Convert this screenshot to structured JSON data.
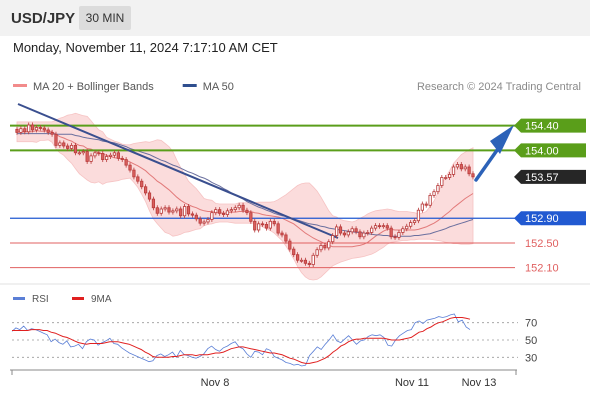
{
  "header": {
    "symbol": "USD/JPY",
    "timeframe": "30 MIN"
  },
  "timestamp": "Monday, November 11, 2024 7:17:10 AM CET",
  "legend": {
    "items": [
      {
        "label": "MA 20 + Bollinger Bands",
        "color": "#f28b8b"
      },
      {
        "label": "MA 50",
        "color": "#2f4f8f"
      }
    ],
    "credit": "Research © 2024 Trading Central"
  },
  "rsi_legend": [
    {
      "label": "RSI",
      "color": "#5b7fd6"
    },
    {
      "label": "9MA",
      "color": "#e02020"
    }
  ],
  "colors": {
    "resistance": "#5a9e1a",
    "pivot": "#2159d1",
    "support": "#e06060",
    "arrow": "#2c62b8",
    "bollinger_fill": "#fbdcdc",
    "candle_fill": "#d8605e",
    "candle_stroke": "#b83a3a"
  },
  "chart_data": [
    {
      "type": "candlestick",
      "title": "USD/JPY",
      "timeframe": "30 MIN",
      "ylim": [
        151.9,
        154.75
      ],
      "x_ticks": [
        "Nov 8",
        "Nov 11",
        "Nov 13"
      ],
      "levels": [
        {
          "value": 154.4,
          "label": "154.40",
          "kind": "resistance"
        },
        {
          "value": 154.0,
          "label": "154.00",
          "kind": "resistance"
        },
        {
          "value": 153.57,
          "label": "153.57",
          "kind": "last"
        },
        {
          "value": 152.9,
          "label": "152.90",
          "kind": "pivot"
        },
        {
          "value": 152.5,
          "label": "152.50",
          "kind": "support"
        },
        {
          "value": 152.1,
          "label": "152.10",
          "kind": "support"
        }
      ],
      "close": [
        154.29,
        154.35,
        154.3,
        154.41,
        154.33,
        154.37,
        154.36,
        154.33,
        154.29,
        154.26,
        154.08,
        154.12,
        154.07,
        154.03,
        154.08,
        153.96,
        153.96,
        153.98,
        153.82,
        153.91,
        153.96,
        153.95,
        153.85,
        153.9,
        153.92,
        153.96,
        153.87,
        153.85,
        153.76,
        153.68,
        153.57,
        153.5,
        153.41,
        153.31,
        153.21,
        153.07,
        152.98,
        153.05,
        153.07,
        153.0,
        153.02,
        153.05,
        152.94,
        153.09,
        152.97,
        152.95,
        152.89,
        152.82,
        152.84,
        152.88,
        152.99,
        153.04,
        152.98,
        152.96,
        153.02,
        153.04,
        153.07,
        153.11,
        153.03,
        152.99,
        152.85,
        152.71,
        152.81,
        152.8,
        152.74,
        152.85,
        152.81,
        152.66,
        152.63,
        152.53,
        152.4,
        152.31,
        152.22,
        152.22,
        152.17,
        152.15,
        152.3,
        152.39,
        152.46,
        152.42,
        152.52,
        152.62,
        152.76,
        152.66,
        152.63,
        152.68,
        152.73,
        152.68,
        152.6,
        152.66,
        152.67,
        152.74,
        152.78,
        152.77,
        152.78,
        152.74,
        152.6,
        152.59,
        152.67,
        152.73,
        152.77,
        152.83,
        152.86,
        153.03,
        153.13,
        153.11,
        153.27,
        153.33,
        153.43,
        153.56,
        153.56,
        153.61,
        153.73,
        153.77,
        153.7,
        153.73,
        153.62,
        153.57
      ],
      "ma20": [
        154.3,
        154.3,
        154.3,
        154.3,
        154.3,
        154.32,
        154.31,
        154.31,
        154.32,
        154.3,
        154.26,
        154.22,
        154.2,
        154.17,
        154.15,
        154.11,
        154.08,
        154.07,
        154.03,
        154.02,
        153.99,
        153.96,
        153.94,
        153.92,
        153.9,
        153.88,
        153.87,
        153.86,
        153.84,
        153.81,
        153.78,
        153.75,
        153.71,
        153.67,
        153.61,
        153.56,
        153.5,
        153.46,
        153.41,
        153.36,
        153.3,
        153.24,
        153.19,
        153.15,
        153.12,
        153.09,
        153.07,
        153.04,
        153.02,
        153.01,
        153.01,
        152.99,
        152.99,
        152.98,
        152.99,
        153.0,
        153.0,
        153.01,
        153.01,
        153.01,
        153.01,
        152.99,
        152.98,
        152.96,
        152.95,
        152.94,
        152.93,
        152.92,
        152.9,
        152.87,
        152.84,
        152.81,
        152.76,
        152.71,
        152.66,
        152.62,
        152.58,
        152.55,
        152.52,
        152.49,
        152.46,
        152.44,
        152.44,
        152.44,
        152.44,
        152.44,
        152.44,
        152.45,
        152.46,
        152.48,
        152.51,
        152.56,
        152.61,
        152.65,
        152.69,
        152.72,
        152.72,
        152.71,
        152.71,
        152.71,
        152.71,
        152.71,
        152.71,
        152.72,
        152.74,
        152.76,
        152.79,
        152.82,
        152.86,
        152.91,
        152.96,
        153.01,
        153.07,
        153.12,
        153.17,
        153.22,
        153.26,
        153.3
      ],
      "bollinger_upper": [
        154.46,
        154.46,
        154.46,
        154.46,
        154.46,
        154.46,
        154.46,
        154.46,
        154.46,
        154.46,
        154.49,
        154.52,
        154.54,
        154.57,
        154.58,
        154.6,
        154.58,
        154.56,
        154.55,
        154.48,
        154.4,
        154.33,
        154.3,
        154.21,
        154.18,
        154.15,
        154.13,
        154.1,
        154.09,
        154.09,
        154.11,
        154.12,
        154.13,
        154.14,
        154.13,
        154.15,
        154.17,
        154.16,
        154.11,
        154.06,
        153.98,
        153.84,
        153.72,
        153.61,
        153.5,
        153.44,
        153.38,
        153.3,
        153.22,
        153.2,
        153.19,
        153.14,
        153.13,
        153.13,
        153.13,
        153.13,
        153.13,
        153.15,
        153.15,
        153.15,
        153.15,
        153.15,
        153.16,
        153.16,
        153.16,
        153.16,
        153.17,
        153.2,
        153.24,
        153.28,
        153.33,
        153.38,
        153.43,
        153.46,
        153.47,
        153.47,
        153.41,
        153.34,
        153.24,
        153.13,
        153.02,
        152.94,
        152.92,
        152.88,
        152.86,
        152.85,
        152.84,
        152.86,
        152.9,
        152.93,
        152.97,
        153.0,
        153.02,
        153.03,
        153.04,
        153.05,
        153.04,
        153.02,
        153.01,
        153.01,
        153.01,
        153.0,
        152.99,
        152.97,
        152.98,
        153.01,
        153.09,
        153.18,
        153.31,
        153.45,
        153.57,
        153.67,
        153.79,
        153.86,
        153.93,
        153.97,
        154.01,
        154.04
      ],
      "bollinger_lower": [
        154.14,
        154.14,
        154.14,
        154.14,
        154.14,
        154.13,
        154.16,
        154.16,
        154.17,
        154.13,
        154.02,
        153.96,
        153.92,
        153.85,
        153.79,
        153.7,
        153.62,
        153.57,
        153.52,
        153.48,
        153.47,
        153.49,
        153.45,
        153.48,
        153.49,
        153.5,
        153.51,
        153.53,
        153.54,
        153.55,
        153.48,
        153.4,
        153.29,
        153.17,
        153.02,
        152.89,
        152.81,
        152.74,
        152.67,
        152.65,
        152.61,
        152.62,
        152.64,
        152.67,
        152.68,
        152.7,
        152.72,
        152.73,
        152.78,
        152.8,
        152.81,
        152.83,
        152.84,
        152.84,
        152.84,
        152.83,
        152.82,
        152.82,
        152.82,
        152.82,
        152.82,
        152.82,
        152.79,
        152.76,
        152.73,
        152.7,
        152.66,
        152.6,
        152.54,
        152.45,
        152.35,
        152.24,
        152.12,
        152.02,
        151.95,
        151.91,
        151.9,
        151.91,
        151.95,
        152.01,
        152.07,
        152.13,
        152.16,
        152.19,
        152.21,
        152.23,
        152.25,
        152.26,
        152.27,
        152.28,
        152.3,
        152.32,
        152.35,
        152.39,
        152.43,
        152.48,
        152.51,
        152.52,
        152.53,
        152.54,
        152.54,
        152.55,
        152.55,
        152.56,
        152.56,
        152.56,
        152.56,
        152.55,
        152.54,
        152.53,
        152.51,
        152.5,
        152.49,
        152.49,
        152.48,
        152.48,
        152.48,
        152.49
      ],
      "ma50": [
        154.27,
        154.27,
        154.27,
        154.27,
        154.27,
        154.27,
        154.27,
        154.27,
        154.27,
        154.27,
        154.26,
        154.26,
        154.26,
        154.26,
        154.26,
        154.24,
        154.23,
        154.21,
        154.2,
        154.19,
        154.18,
        154.17,
        154.15,
        154.14,
        154.13,
        154.12,
        154.1,
        154.08,
        154.06,
        154.03,
        154.01,
        153.99,
        153.97,
        153.95,
        153.93,
        153.9,
        153.87,
        153.84,
        153.82,
        153.79,
        153.76,
        153.74,
        153.71,
        153.68,
        153.65,
        153.63,
        153.6,
        153.57,
        153.55,
        153.52,
        153.48,
        153.45,
        153.42,
        153.38,
        153.35,
        153.31,
        153.28,
        153.24,
        153.21,
        153.17,
        153.14,
        153.11,
        153.08,
        153.06,
        153.03,
        153.01,
        152.98,
        152.96,
        152.94,
        152.93,
        152.91,
        152.89,
        152.87,
        152.85,
        152.83,
        152.81,
        152.8,
        152.79,
        152.77,
        152.76,
        152.74,
        152.73,
        152.72,
        152.71,
        152.7,
        152.69,
        152.68,
        152.67,
        152.67,
        152.66,
        152.65,
        152.64,
        152.63,
        152.63,
        152.62,
        152.62,
        152.61,
        152.61,
        152.61,
        152.61,
        152.61,
        152.61,
        152.62,
        152.62,
        152.63,
        152.64,
        152.65,
        152.67,
        152.69,
        152.71,
        152.73,
        152.76,
        152.78,
        152.8,
        152.82,
        152.84,
        152.86,
        152.88
      ]
    },
    {
      "type": "line",
      "title": "RSI",
      "ylim": [
        20,
        80
      ],
      "y_ticks": [
        30,
        50,
        70
      ],
      "series": [
        {
          "name": "RSI",
          "values": [
            60,
            64,
            62,
            66,
            61,
            63,
            62,
            60,
            58,
            56,
            48,
            51,
            47,
            45,
            49,
            42,
            43,
            45,
            40,
            48,
            51,
            50,
            44,
            47,
            49,
            52,
            46,
            45,
            41,
            38,
            35,
            33,
            31,
            29,
            27,
            25,
            26,
            32,
            34,
            31,
            33,
            36,
            30,
            38,
            33,
            32,
            30,
            29,
            31,
            34,
            40,
            43,
            39,
            37,
            41,
            43,
            46,
            48,
            42,
            40,
            34,
            30,
            37,
            36,
            33,
            40,
            38,
            31,
            29,
            27,
            24,
            23,
            21,
            22,
            20,
            21,
            32,
            37,
            42,
            39,
            45,
            50,
            56,
            49,
            47,
            51,
            55,
            50,
            45,
            49,
            50,
            54,
            56,
            55,
            56,
            53,
            44,
            43,
            50,
            55,
            58,
            61,
            62,
            70,
            72,
            69,
            73,
            74,
            75,
            77,
            76,
            77,
            79,
            80,
            71,
            73,
            65,
            62
          ]
        },
        {
          "name": "9MA",
          "values": [
            61,
            61,
            61,
            61,
            61,
            62,
            62,
            62,
            61,
            61,
            59,
            58,
            56,
            54,
            53,
            51,
            49,
            47,
            46,
            45,
            46,
            46,
            46,
            46,
            47,
            48,
            48,
            48,
            47,
            46,
            45,
            43,
            41,
            39,
            36,
            34,
            31,
            30,
            30,
            30,
            30,
            31,
            31,
            32,
            33,
            33,
            33,
            32,
            33,
            33,
            33,
            34,
            35,
            35,
            36,
            38,
            40,
            41,
            42,
            42,
            41,
            40,
            39,
            38,
            37,
            36,
            35,
            35,
            34,
            33,
            31,
            29,
            28,
            26,
            24,
            23,
            23,
            24,
            25,
            27,
            29,
            32,
            36,
            39,
            43,
            45,
            48,
            50,
            51,
            51,
            52,
            52,
            52,
            52,
            52,
            52,
            51,
            50,
            50,
            50,
            51,
            52,
            53,
            56,
            59,
            60,
            63,
            65,
            68,
            70,
            71,
            73,
            75,
            76,
            76,
            76,
            75,
            74
          ]
        }
      ],
      "x_ticks": [
        "Nov 8",
        "Nov 11",
        "Nov 13"
      ]
    }
  ]
}
